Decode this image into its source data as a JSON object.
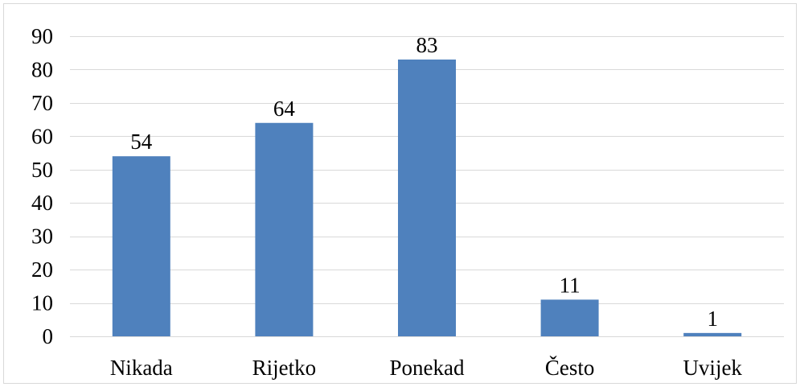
{
  "chart_data": {
    "type": "bar",
    "title": "",
    "xlabel": "",
    "ylabel": "",
    "categories": [
      "Nikada",
      "Rijetko",
      "Ponekad",
      "Često",
      "Uvijek"
    ],
    "values": [
      54,
      64,
      83,
      11,
      1
    ],
    "data_labels": [
      "54",
      "64",
      "83",
      "11",
      "1"
    ],
    "ylim": [
      0,
      90
    ],
    "yticks": [
      0,
      10,
      20,
      30,
      40,
      50,
      60,
      70,
      80,
      90
    ],
    "ytick_labels": [
      "0",
      "10",
      "20",
      "30",
      "40",
      "50",
      "60",
      "70",
      "80",
      "90"
    ],
    "grid": true,
    "legend": "none",
    "bar_color": "#4f81bd",
    "grid_color": "#d9d9d9"
  }
}
